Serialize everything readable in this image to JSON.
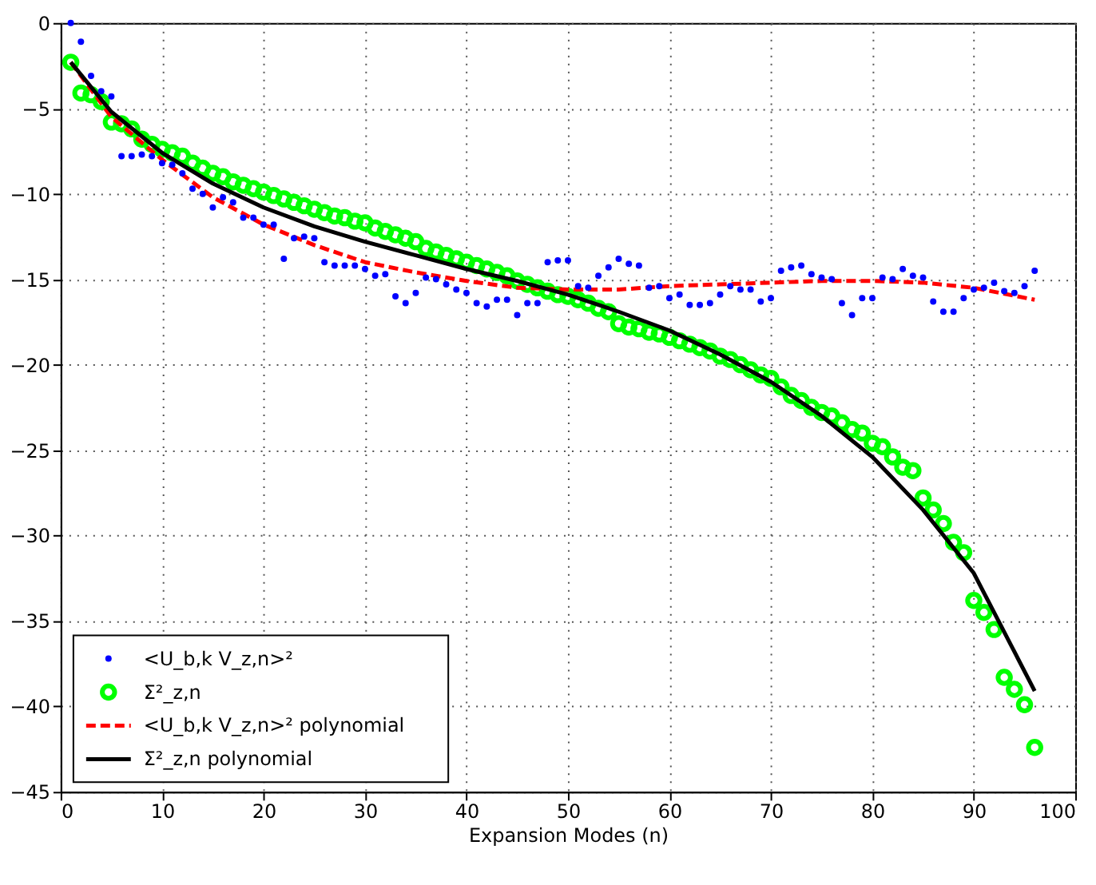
{
  "chart_data": {
    "type": "scatter",
    "xlabel": "Expansion Modes (n)",
    "xlim": [
      0,
      100
    ],
    "xticks": [
      0,
      10,
      20,
      30,
      40,
      50,
      60,
      70,
      80,
      90,
      100
    ],
    "ylim": [
      -45,
      0
    ],
    "yticks": [
      -45,
      -40,
      -35,
      -30,
      -25,
      -20,
      -15,
      -10,
      -5,
      0
    ],
    "grid": true,
    "legend": "bottom left",
    "series": [
      {
        "name": "<U_b,k V_z,n>²",
        "type": "scatter",
        "marker": "circle",
        "color": "#0000ff",
        "x": [
          1,
          2,
          3,
          4,
          5,
          6,
          7,
          8,
          9,
          10,
          11,
          12,
          13,
          14,
          15,
          16,
          17,
          18,
          19,
          20,
          21,
          22,
          23,
          24,
          25,
          26,
          27,
          28,
          29,
          30,
          31,
          32,
          33,
          34,
          35,
          36,
          37,
          38,
          39,
          40,
          41,
          42,
          43,
          44,
          45,
          46,
          47,
          48,
          49,
          50,
          51,
          52,
          53,
          54,
          55,
          56,
          57,
          58,
          59,
          60,
          61,
          62,
          63,
          64,
          65,
          66,
          67,
          68,
          69,
          70,
          71,
          72,
          73,
          74,
          75,
          76,
          77,
          78,
          79,
          80,
          81,
          82,
          83,
          84,
          85,
          86,
          87,
          88,
          89,
          90,
          91,
          92,
          93,
          94,
          95,
          96
        ],
        "values": [
          0,
          -1.1,
          -3.1,
          -4.0,
          -4.3,
          -7.8,
          -7.8,
          -7.7,
          -7.8,
          -8.2,
          -8.3,
          -8.8,
          -9.7,
          -10.0,
          -10.8,
          -10.2,
          -10.5,
          -11.4,
          -11.4,
          -11.8,
          -11.8,
          -13.8,
          -12.6,
          -12.5,
          -12.6,
          -14.0,
          -14.2,
          -14.2,
          -14.2,
          -14.4,
          -14.8,
          -14.7,
          -16.0,
          -16.4,
          -15.8,
          -14.9,
          -15.0,
          -15.3,
          -15.6,
          -15.8,
          -16.4,
          -16.6,
          -16.2,
          -16.2,
          -17.1,
          -16.4,
          -16.4,
          -14.0,
          -13.9,
          -13.9,
          -15.4,
          -15.5,
          -14.8,
          -14.3,
          -13.8,
          -14.1,
          -14.2,
          -15.5,
          -15.4,
          -16.1,
          -15.9,
          -16.5,
          -16.5,
          -16.4,
          -15.9,
          -15.4,
          -15.6,
          -15.6,
          -16.3,
          -16.1,
          -14.5,
          -14.3,
          -14.2,
          -14.7,
          -14.9,
          -15.0,
          -16.4,
          -17.1,
          -16.1,
          -16.1,
          -14.9,
          -15.0,
          -14.4,
          -14.8,
          -14.9,
          -16.3,
          -16.9,
          -16.9,
          -16.1,
          -15.6,
          -15.5,
          -15.2,
          -15.7,
          -15.8,
          -15.4,
          -14.5
        ]
      },
      {
        "name": "Σ²_z,n",
        "type": "scatter",
        "marker": "circle",
        "color": "#00ff00",
        "x": [
          1,
          2,
          3,
          4,
          5,
          6,
          7,
          8,
          9,
          10,
          11,
          12,
          13,
          14,
          15,
          16,
          17,
          18,
          19,
          20,
          21,
          22,
          23,
          24,
          25,
          26,
          27,
          28,
          29,
          30,
          31,
          32,
          33,
          34,
          35,
          36,
          37,
          38,
          39,
          40,
          41,
          42,
          43,
          44,
          45,
          46,
          47,
          48,
          49,
          50,
          51,
          52,
          53,
          54,
          55,
          56,
          57,
          58,
          59,
          60,
          61,
          62,
          63,
          64,
          65,
          66,
          67,
          68,
          69,
          70,
          71,
          72,
          73,
          74,
          75,
          76,
          77,
          78,
          79,
          80,
          81,
          82,
          83,
          84,
          85,
          86,
          87,
          88,
          89,
          90,
          91,
          92,
          93,
          94,
          95,
          96
        ],
        "values": [
          -2.3,
          -4.1,
          -4.2,
          -4.6,
          -5.8,
          -5.9,
          -6.2,
          -6.8,
          -7.1,
          -7.4,
          -7.6,
          -7.8,
          -8.2,
          -8.5,
          -8.8,
          -9.0,
          -9.3,
          -9.5,
          -9.7,
          -9.9,
          -10.1,
          -10.3,
          -10.5,
          -10.7,
          -10.9,
          -11.1,
          -11.3,
          -11.4,
          -11.6,
          -11.7,
          -12.0,
          -12.2,
          -12.4,
          -12.6,
          -12.8,
          -13.2,
          -13.4,
          -13.6,
          -13.8,
          -14.0,
          -14.2,
          -14.4,
          -14.6,
          -14.8,
          -15.1,
          -15.3,
          -15.5,
          -15.7,
          -15.9,
          -16.0,
          -16.2,
          -16.4,
          -16.7,
          -16.9,
          -17.6,
          -17.8,
          -17.9,
          -18.1,
          -18.2,
          -18.4,
          -18.6,
          -18.8,
          -19.0,
          -19.2,
          -19.5,
          -19.7,
          -20.0,
          -20.3,
          -20.6,
          -20.8,
          -21.3,
          -21.8,
          -22.1,
          -22.5,
          -22.8,
          -23.0,
          -23.4,
          -23.8,
          -24.0,
          -24.6,
          -24.8,
          -25.4,
          -26.0,
          -26.2,
          -27.8,
          -28.5,
          -29.3,
          -30.4,
          -31.0,
          -33.8,
          -34.5,
          -35.5,
          -38.3,
          -39.0,
          -39.9,
          -42.4
        ]
      },
      {
        "name": "<U_b,k V_z,n>² polynomial",
        "type": "line",
        "line_style": "dashed",
        "color": "#ff0000",
        "x": [
          1,
          5,
          10,
          15,
          20,
          25,
          30,
          35,
          40,
          45,
          50,
          55,
          60,
          65,
          70,
          75,
          80,
          85,
          90,
          96
        ],
        "values": [
          -2.3,
          -5.5,
          -8.0,
          -10.2,
          -11.8,
          -13.0,
          -14.0,
          -14.6,
          -15.1,
          -15.5,
          -15.6,
          -15.6,
          -15.4,
          -15.3,
          -15.2,
          -15.1,
          -15.1,
          -15.2,
          -15.5,
          -16.2
        ]
      },
      {
        "name": "Σ²_z,n polynomial",
        "type": "line",
        "line_style": "solid",
        "color": "#000000",
        "x": [
          1,
          5,
          10,
          15,
          20,
          25,
          30,
          35,
          40,
          45,
          50,
          55,
          60,
          65,
          70,
          75,
          80,
          85,
          90,
          96
        ],
        "values": [
          -2.3,
          -5.2,
          -7.6,
          -9.4,
          -10.8,
          -11.9,
          -12.8,
          -13.6,
          -14.4,
          -15.1,
          -15.9,
          -16.9,
          -18.0,
          -19.4,
          -21.0,
          -23.0,
          -25.4,
          -28.5,
          -32.2,
          -39.1
        ]
      }
    ]
  }
}
